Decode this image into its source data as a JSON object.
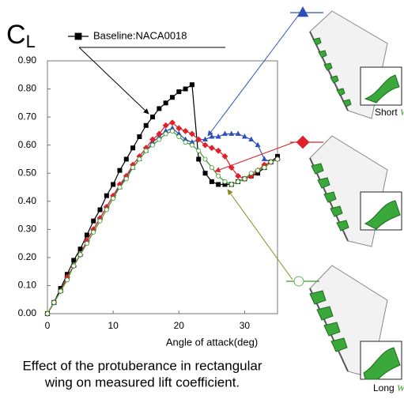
{
  "chart_data": {
    "type": "line",
    "ylabel": {
      "symbol": "C",
      "subscript": "L"
    },
    "xlabel": "Angle of attack(deg)",
    "caption": [
      "Effect of the protuberance in rectangular",
      "wing on measured lift coefficient."
    ],
    "side_labels": [
      {
        "text": "Short",
        "symbol": "W"
      },
      {
        "text": "Long",
        "symbol": "W"
      }
    ],
    "x": [
      0,
      1,
      2,
      3,
      4,
      5,
      6,
      7,
      8,
      9,
      10,
      11,
      12,
      13,
      14,
      15,
      16,
      17,
      18,
      19,
      20,
      21,
      22,
      23,
      24,
      25,
      26,
      27,
      28,
      29,
      30,
      31,
      32,
      33,
      34,
      35
    ],
    "xlim": [
      0,
      35
    ],
    "xticks": [
      0,
      10,
      20,
      30
    ],
    "ylim": [
      0,
      0.9
    ],
    "yticks": [
      {
        "value": 0,
        "label": "0.00"
      },
      {
        "value": 0.1,
        "label": "0.10"
      },
      {
        "value": 0.2,
        "label": "0.20"
      },
      {
        "value": 0.3,
        "label": "0.30"
      },
      {
        "value": 0.4,
        "label": "0.40"
      },
      {
        "value": 0.5,
        "label": "0.50"
      },
      {
        "value": 0.6,
        "label": "0.60"
      },
      {
        "value": 0.7,
        "label": "0.70"
      },
      {
        "value": 0.8,
        "label": "0.80"
      },
      {
        "value": 0.9,
        "label": "0.90"
      }
    ],
    "grid": false,
    "series": [
      {
        "name": "Baseline:NACA0018",
        "color": "#000000",
        "marker": "square",
        "values": [
          0,
          0.04,
          0.09,
          0.14,
          0.19,
          0.23,
          0.28,
          0.33,
          0.37,
          0.42,
          0.46,
          0.51,
          0.55,
          0.59,
          0.63,
          0.67,
          0.7,
          0.73,
          0.75,
          0.77,
          0.79,
          0.8,
          0.815,
          0.55,
          0.5,
          0.47,
          0.46,
          0.46,
          0.46,
          0.47,
          0.48,
          0.49,
          0.5,
          0.52,
          0.54,
          0.56
        ]
      },
      {
        "color": "#2f4fb8",
        "marker": "triangle",
        "values": [
          0,
          0.04,
          0.08,
          0.13,
          0.17,
          0.21,
          0.26,
          0.3,
          0.34,
          0.38,
          0.42,
          0.45,
          0.49,
          0.52,
          0.55,
          0.58,
          0.61,
          0.63,
          0.65,
          0.66,
          0.64,
          0.62,
          0.61,
          0.62,
          0.62,
          0.63,
          0.63,
          0.64,
          0.64,
          0.64,
          0.63,
          0.62,
          0.6,
          0.55,
          0.54,
          0.55
        ]
      },
      {
        "color": "#e0202a",
        "marker": "diamond",
        "values": [
          0,
          0.04,
          0.08,
          0.13,
          0.17,
          0.21,
          0.26,
          0.3,
          0.34,
          0.38,
          0.42,
          0.46,
          0.49,
          0.53,
          0.56,
          0.59,
          0.62,
          0.64,
          0.67,
          0.68,
          0.66,
          0.65,
          0.64,
          0.62,
          0.6,
          0.59,
          0.58,
          0.56,
          0.52,
          0.49,
          0.48,
          0.49,
          0.51,
          0.53,
          0.54,
          0.55
        ]
      },
      {
        "color": "#3a9a2a",
        "marker": "circle",
        "values": [
          0,
          0.04,
          0.08,
          0.12,
          0.17,
          0.21,
          0.25,
          0.29,
          0.33,
          0.37,
          0.41,
          0.45,
          0.48,
          0.52,
          0.55,
          0.58,
          0.6,
          0.62,
          0.64,
          0.65,
          0.63,
          0.61,
          0.6,
          0.58,
          0.55,
          0.52,
          0.49,
          0.47,
          0.46,
          0.47,
          0.48,
          0.5,
          0.51,
          0.52,
          0.54,
          0.55
        ]
      }
    ]
  }
}
